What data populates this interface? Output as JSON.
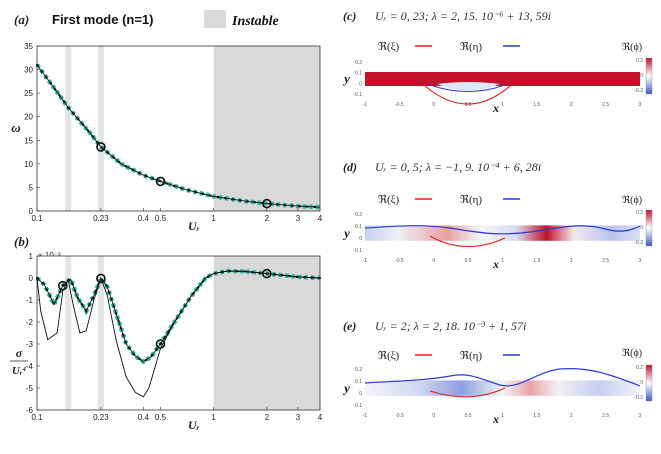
{
  "figure": {
    "header": {
      "panel_a_tag": "(a)",
      "title": "First mode (n=1)",
      "instable_label": "Instable"
    },
    "colors": {
      "curve": "#111111",
      "markers": "#2bb8a0",
      "shade": "#d9d9d9",
      "band": "#e4e4e4",
      "real_xi": "#e02020",
      "real_eta": "#2a3ad8",
      "cmap_pos": "#c4122a",
      "cmap_neg": "#3a5cc8"
    },
    "panel_b": {
      "tag": "(b)",
      "exponent": "× 10⁻³"
    },
    "panel_c": {
      "tag": "(c)",
      "equation": "Uᵣ = 0, 23; λ = 2, 15. 10⁻⁶ + 13, 59i"
    },
    "panel_d": {
      "tag": "(d)",
      "equation": "Uᵣ = 0, 5; λ = −1, 9. 10⁻⁴ + 6, 28i"
    },
    "panel_e": {
      "tag": "(e)",
      "equation": "Uᵣ = 2; λ = 2, 18. 10⁻³ + 1, 57i"
    },
    "legend_xi": "ℜ(ξ)",
    "legend_eta": "ℜ(η)",
    "colorbar_label": "ℜ(ϕ)",
    "ylabel_y": "y",
    "xlabel_x": "x"
  },
  "chart_data": [
    {
      "type": "line",
      "panel": "(a)",
      "xlabel": "Uᵣ",
      "ylabel": "ω",
      "xscale": "log",
      "xlim": [
        0.1,
        4
      ],
      "ylim": [
        0,
        35
      ],
      "x_ticks": [
        "0.1",
        "0.23",
        "0.4",
        "0.5",
        "1",
        "2",
        "3",
        "4"
      ],
      "y_ticks": [
        "0",
        "5",
        "10",
        "15",
        "20",
        "25",
        "30",
        "35"
      ],
      "instable_region": [
        1,
        4
      ],
      "vertical_bands": [
        0.15,
        0.23
      ],
      "series": [
        {
          "x": [
            0.1,
            0.12,
            0.15,
            0.2,
            0.23,
            0.3,
            0.4,
            0.5,
            0.7,
            1.0,
            1.5,
            2.0,
            3.0,
            4.0
          ],
          "y": [
            31,
            27,
            22,
            16.5,
            13.6,
            10,
            7.6,
            6.3,
            4.5,
            3.1,
            2.1,
            1.57,
            1.05,
            0.8
          ]
        }
      ],
      "highlighted_points": [
        {
          "x": 0.23,
          "y": 13.59
        },
        {
          "x": 0.5,
          "y": 6.28
        },
        {
          "x": 2.0,
          "y": 1.57
        }
      ]
    },
    {
      "type": "line",
      "panel": "(b)",
      "xlabel": "Uᵣ",
      "ylabel": "σ / Uᵣ⁴",
      "xscale": "log",
      "xlim": [
        0.1,
        4
      ],
      "ylim": [
        -6,
        1
      ],
      "x_ticks": [
        "0.1",
        "0.23",
        "0.4",
        "0.5",
        "1",
        "2",
        "3",
        "4"
      ],
      "y_ticks": [
        "1",
        "0",
        "-1",
        "-2",
        "-3",
        "-4",
        "-5",
        "-6"
      ],
      "instable_region": [
        1,
        4
      ],
      "vertical_bands": [
        0.15,
        0.23
      ],
      "series": [
        {
          "x": [
            0.1,
            0.11,
            0.125,
            0.14,
            0.155,
            0.17,
            0.19,
            0.21,
            0.23,
            0.25,
            0.28,
            0.32,
            0.36,
            0.4,
            0.44,
            0.5,
            0.6,
            0.75,
            0.9,
            1.0,
            1.2,
            1.5,
            2.0,
            3.0,
            4.0
          ],
          "y": [
            0,
            -0.3,
            -1.2,
            -0.35,
            -0.05,
            -0.9,
            -1.5,
            -0.8,
            -0.02,
            -0.4,
            -1.6,
            -3.0,
            -3.55,
            -3.8,
            -3.6,
            -3.0,
            -2.0,
            -0.8,
            0.0,
            0.2,
            0.32,
            0.3,
            0.2,
            0.05,
            0.0
          ]
        },
        {
          "x": [
            0.1,
            0.105,
            0.115,
            0.13,
            0.14,
            0.15,
            0.16,
            0.175,
            0.19,
            0.21,
            0.23,
            0.25,
            0.28,
            0.32,
            0.36,
            0.4,
            0.43,
            0.46,
            0.5,
            0.6,
            0.75,
            0.9,
            1.0,
            1.2,
            1.5,
            2.0,
            3.0,
            4.0
          ],
          "y": [
            0,
            -1.5,
            -2.8,
            -2.5,
            -0.6,
            -0.05,
            -1.2,
            -2.5,
            -2.4,
            -1.0,
            -0.02,
            -0.8,
            -2.8,
            -4.5,
            -5.2,
            -5.4,
            -5.0,
            -4.2,
            -3.2,
            -2.0,
            -0.8,
            0.0,
            0.2,
            0.32,
            0.3,
            0.2,
            0.05,
            0.0
          ]
        }
      ],
      "highlighted_points": [
        {
          "x": 0.14,
          "y": -0.35
        },
        {
          "x": 0.23,
          "y": -0.02
        },
        {
          "x": 0.5,
          "y": -3.0
        },
        {
          "x": 2.0,
          "y": 0.2
        }
      ]
    }
  ],
  "field_panels": {
    "x_ticks": [
      "-1",
      "-0.5",
      "0",
      "0.5",
      "1",
      "1.5",
      "2",
      "2.5",
      "3"
    ],
    "y_ticks": [
      "0.2",
      "0.1",
      "0",
      "-0.1"
    ],
    "colorbar_ticks": [
      "0.2",
      "0",
      "-0.2"
    ]
  }
}
